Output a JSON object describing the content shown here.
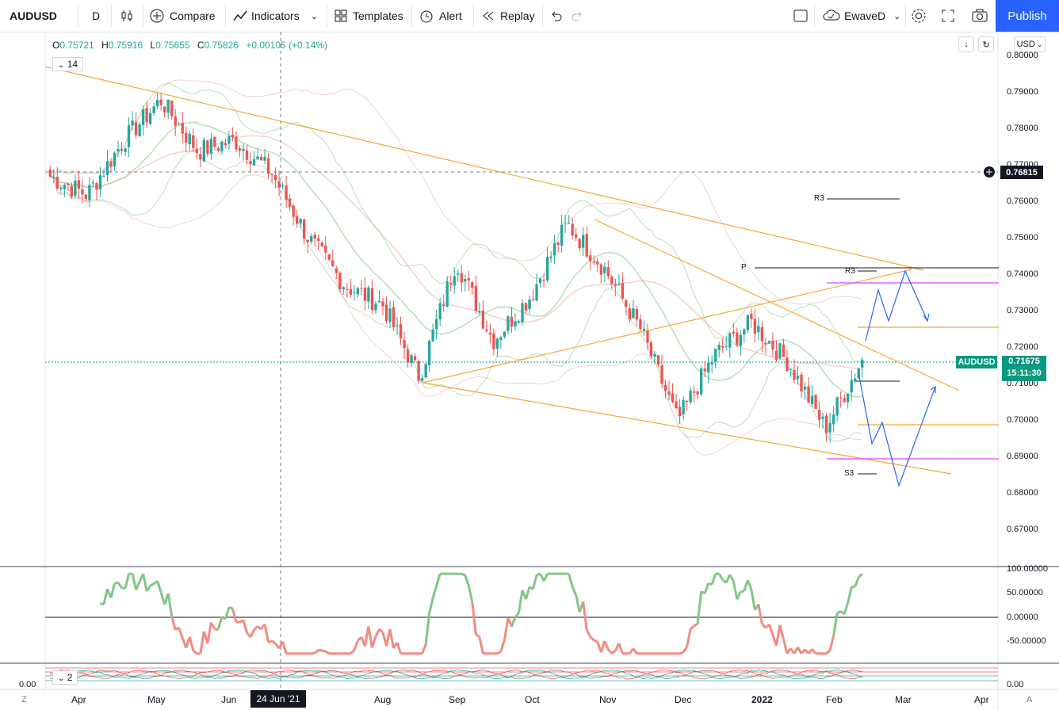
{
  "toolbar": {
    "symbol": "AUDUSD",
    "interval": "D",
    "compare": "Compare",
    "indicators": "Indicators",
    "templates": "Templates",
    "alert": "Alert",
    "replay": "Replay",
    "layout_name": "EwaveD",
    "publish": "Publish"
  },
  "legend": {
    "o_label": "O",
    "o": "0.75721",
    "h_label": "H",
    "h": "0.75916",
    "l_label": "L",
    "l": "0.75655",
    "c_label": "C",
    "c": "0.75826",
    "change": "+0.00105 (+0.14%)",
    "study_value": "14",
    "study2_value": "2"
  },
  "currency": "USD",
  "price_axis": [
    "0.80000",
    "0.79000",
    "0.78000",
    "0.77000",
    "0.76000",
    "0.75000",
    "0.74000",
    "0.73000",
    "0.72000",
    "0.71000",
    "0.70000",
    "0.69000",
    "0.68000",
    "0.67000"
  ],
  "crosshair_price": "0.76815",
  "current": {
    "symbol": "AUDUSD",
    "price": "0.71675",
    "countdown": "15:11:30"
  },
  "levels": {
    "r3_upper": "R3",
    "p": "P",
    "r3": "R3",
    "s3": "S3"
  },
  "osc_axis": [
    "100.00000",
    "50.00000",
    "0.00000",
    "-50.00000"
  ],
  "osc2_axis_right": "0.00",
  "osc2_axis_left": "0.00",
  "time_axis": [
    "Apr",
    "May",
    "Jun",
    "Aug",
    "Sep",
    "Oct",
    "Nov",
    "Dec",
    "2022",
    "Feb",
    "Mar",
    "Apr"
  ],
  "crosshair_date": "24 Jun '21",
  "corner_left": "Z",
  "corner_right": "A",
  "colors": {
    "up": "#26a69a",
    "down": "#ef5350",
    "accent": "#2962ff",
    "trend": "#f7a631"
  },
  "chart_data": {
    "type": "candlestick",
    "symbol": "AUDUSD",
    "interval": "D",
    "ylim": [
      0.665,
      0.802
    ],
    "close_path": [
      {
        "x": "Mar 2021",
        "y": 0.767
      },
      {
        "x": "Apr 2021",
        "y": 0.762
      },
      {
        "x": "Apr 2021",
        "y": 0.777
      },
      {
        "x": "May 2021",
        "y": 0.788
      },
      {
        "x": "May 2021",
        "y": 0.774
      },
      {
        "x": "Jun 2021",
        "y": 0.777
      },
      {
        "x": "Jun 2021",
        "y": 0.768
      },
      {
        "x": "Jul 2021",
        "y": 0.75
      },
      {
        "x": "Jul 2021",
        "y": 0.737
      },
      {
        "x": "Aug 2021",
        "y": 0.732
      },
      {
        "x": "Aug 2021",
        "y": 0.712
      },
      {
        "x": "Sep 2021",
        "y": 0.744
      },
      {
        "x": "Sep 2021",
        "y": 0.722
      },
      {
        "x": "Oct 2021",
        "y": 0.734
      },
      {
        "x": "Oct 2021",
        "y": 0.754
      },
      {
        "x": "Nov 2021",
        "y": 0.742
      },
      {
        "x": "Nov 2021",
        "y": 0.725
      },
      {
        "x": "Dec 2021",
        "y": 0.7
      },
      {
        "x": "Dec 2021",
        "y": 0.718
      },
      {
        "x": "Jan 2022",
        "y": 0.727
      },
      {
        "x": "Jan 2022",
        "y": 0.716
      },
      {
        "x": "Feb 2022",
        "y": 0.698
      },
      {
        "x": "Feb 2022",
        "y": 0.7167
      }
    ],
    "last": {
      "o": 0.75721,
      "h": 0.75916,
      "l": 0.75655,
      "c": 0.75826
    },
    "current_price": 0.71675,
    "pivot_levels": {
      "R3_upper": 0.761,
      "P": 0.742,
      "R3": 0.7415,
      "S3": 0.686
    }
  }
}
